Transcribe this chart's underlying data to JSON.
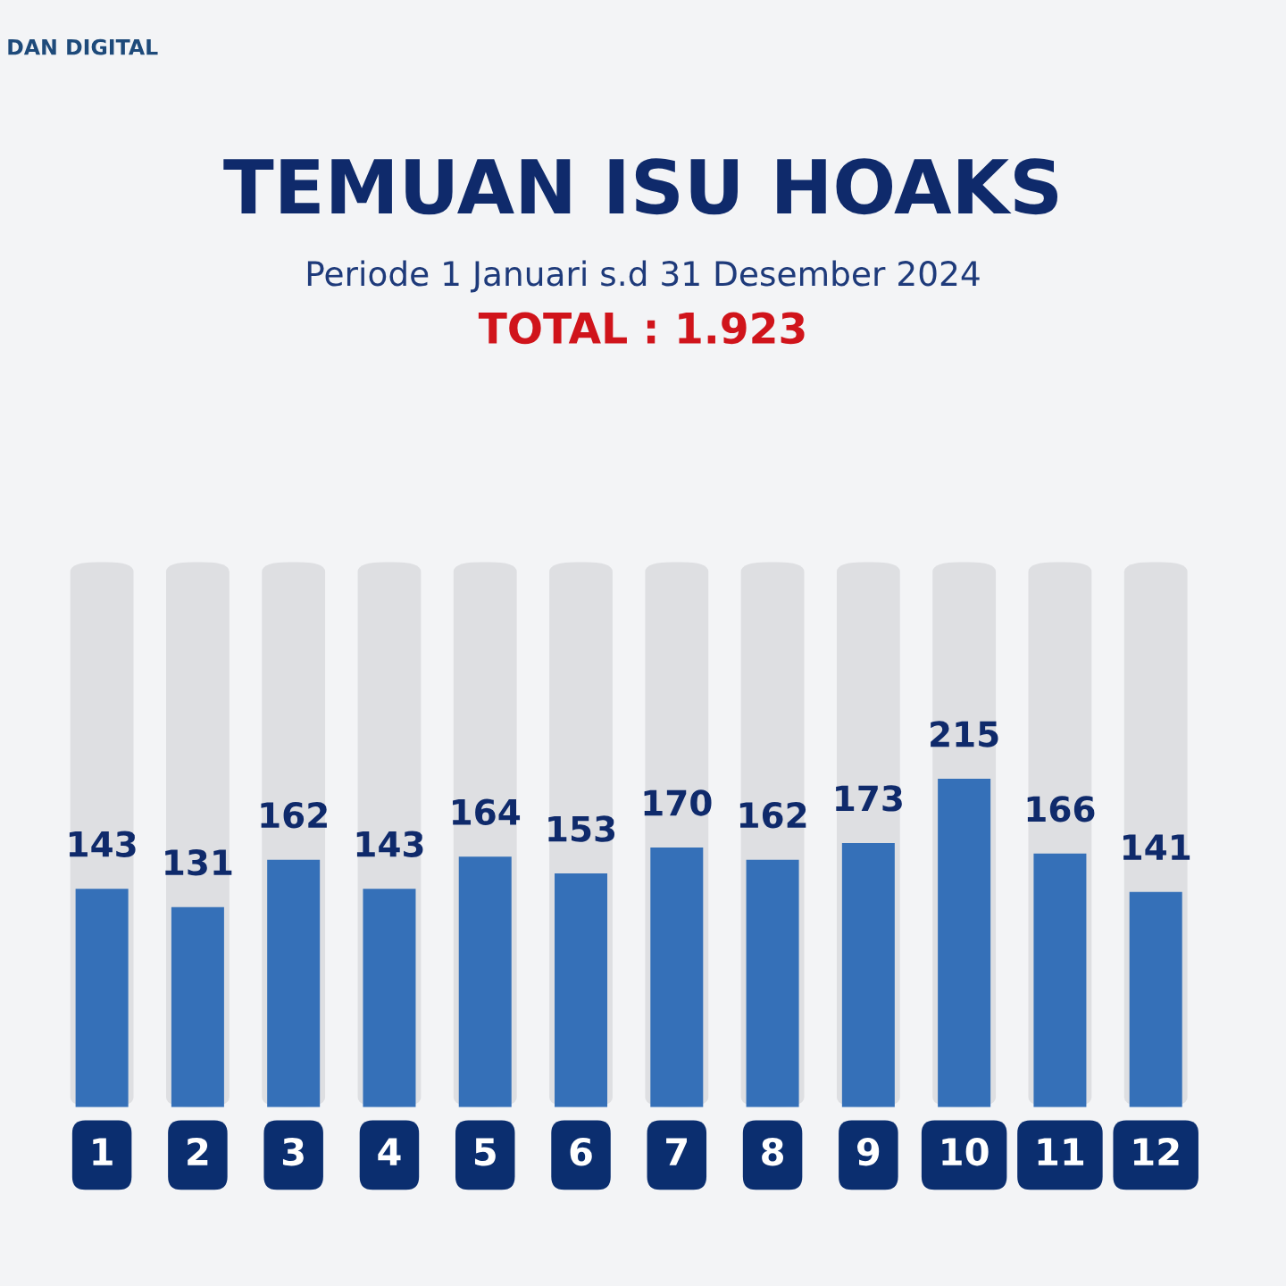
{
  "chart_data": {
    "type": "bar",
    "title": "TEMUAN ISU HOAKS",
    "subtitle": "Periode 1 Januari s.d 31 Desember 2024",
    "annotations": [
      "TOTAL : 1.923",
      "DAN DIGITAL"
    ],
    "categories": [
      "1",
      "2",
      "3",
      "4",
      "5",
      "6",
      "7",
      "8",
      "9",
      "10",
      "11",
      "12"
    ],
    "values": [
      143,
      131,
      162,
      143,
      164,
      153,
      170,
      162,
      173,
      215,
      166,
      141
    ],
    "color": "#3570b8",
    "data_labels": true,
    "tick_labels": "x"
  }
}
